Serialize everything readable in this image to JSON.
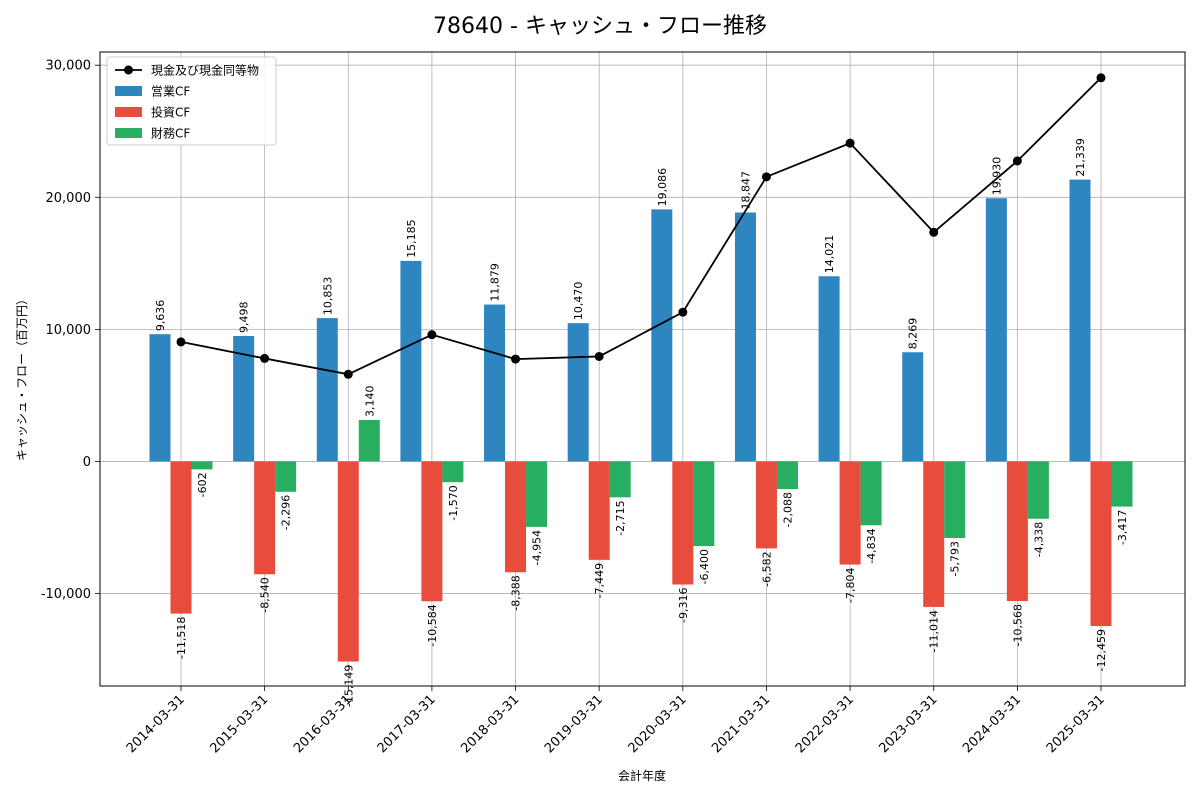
{
  "chart_data": {
    "type": "bar",
    "title": "78640 - キャッシュ・フロー推移",
    "xlabel": "会計年度",
    "ylabel": "キャッシュ・フロー（百万円）",
    "categories": [
      "2014-03-31",
      "2015-03-31",
      "2016-03-31",
      "2017-03-31",
      "2018-03-31",
      "2019-03-31",
      "2020-03-31",
      "2021-03-31",
      "2022-03-31",
      "2023-03-31",
      "2024-03-31",
      "2025-03-31"
    ],
    "ylim": [
      -17000,
      31000
    ],
    "yticks": [
      -10000,
      0,
      10000,
      20000,
      30000
    ],
    "ytick_labels": [
      "-10,000",
      "0",
      "10,000",
      "20,000",
      "30,000"
    ],
    "grid": true,
    "legend_position": "top-left",
    "series": [
      {
        "name": "営業CF",
        "kind": "bar",
        "color": "#2e86c1",
        "values": [
          9636,
          9498,
          10853,
          15185,
          11879,
          10470,
          19086,
          18847,
          14021,
          8269,
          19930,
          21339
        ],
        "labels": [
          "9,636",
          "9,498",
          "10,853",
          "15,185",
          "11,879",
          "10,470",
          "19,086",
          "18,847",
          "14,021",
          "8,269",
          "19,930",
          "21,339"
        ]
      },
      {
        "name": "投資CF",
        "kind": "bar",
        "color": "#e74c3c",
        "values": [
          -11518,
          -8540,
          -15149,
          -10584,
          -8388,
          -7449,
          -9316,
          -6582,
          -7804,
          -11014,
          -10568,
          -12459
        ],
        "labels": [
          "-11,518",
          "-8,540",
          "-15,149",
          "-10,584",
          "-8,388",
          "-7,449",
          "-9,316",
          "-6,582",
          "-7,804",
          "-11,014",
          "-10,568",
          "-12,459"
        ]
      },
      {
        "name": "財務CF",
        "kind": "bar",
        "color": "#27ae60",
        "values": [
          -602,
          -2296,
          3140,
          -1570,
          -4954,
          -2715,
          -6400,
          -2088,
          -4834,
          -5793,
          -4338,
          -3417
        ],
        "labels": [
          "-602",
          "-2,296",
          "3,140",
          "-1,570",
          "-4,954",
          "-2,715",
          "-6,400",
          "-2,088",
          "-4,834",
          "-5,793",
          "-4,338",
          "-3,417"
        ]
      },
      {
        "name": "現金及び現金同等物",
        "kind": "line",
        "color": "#000000",
        "values": [
          9050,
          7800,
          6600,
          9600,
          7750,
          7950,
          11300,
          21550,
          24100,
          17350,
          22750,
          29050
        ]
      }
    ]
  }
}
